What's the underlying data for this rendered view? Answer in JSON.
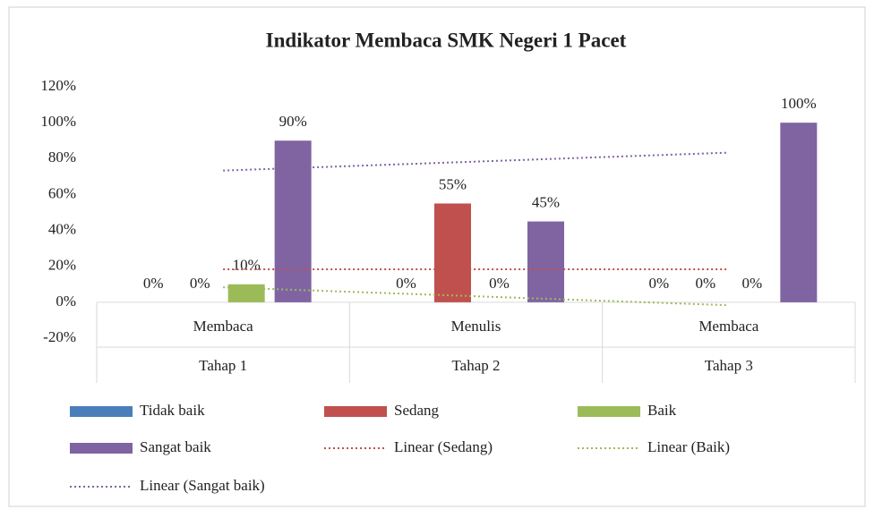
{
  "chart_data": {
    "type": "bar",
    "title": "Indikator Membaca SMK Negeri 1 Pacet",
    "categories": [
      "Membaca",
      "Menulis",
      "Membaca"
    ],
    "category_groups": [
      "Tahap 1",
      "Tahap 2",
      "Tahap 3"
    ],
    "series": [
      {
        "name": "Tidak baik",
        "color": "#4a7ebb",
        "values": [
          0,
          0,
          0
        ],
        "value_labels": [
          "0%",
          "0%",
          "0%"
        ]
      },
      {
        "name": "Sedang",
        "color": "#c0504d",
        "values": [
          0,
          55,
          0
        ],
        "value_labels": [
          "0%",
          "55%",
          "0%"
        ]
      },
      {
        "name": "Baik",
        "color": "#9bbb59",
        "values": [
          10,
          0,
          0
        ],
        "value_labels": [
          "10%",
          "0%",
          "0%"
        ]
      },
      {
        "name": "Sangat baik",
        "color": "#8064a2",
        "values": [
          90,
          45,
          100
        ],
        "value_labels": [
          "90%",
          "45%",
          "100%"
        ]
      }
    ],
    "trendlines": [
      {
        "name": "Linear (Sedang)",
        "series": 1,
        "color": "#c0504d"
      },
      {
        "name": "Linear (Baik)",
        "series": 2,
        "color": "#9bbb59"
      },
      {
        "name": "Linear (Sangat baik)",
        "series": 3,
        "color": "#8064a2"
      }
    ],
    "ylim": [
      -20,
      120
    ],
    "yticks": [
      {
        "value": -20,
        "label": "-20%"
      },
      {
        "value": 0,
        "label": "0%"
      },
      {
        "value": 20,
        "label": "20%"
      },
      {
        "value": 40,
        "label": "40%"
      },
      {
        "value": 60,
        "label": "60%"
      },
      {
        "value": 80,
        "label": "80%"
      },
      {
        "value": 100,
        "label": "100%"
      },
      {
        "value": 120,
        "label": "120%"
      }
    ],
    "grid": false
  }
}
